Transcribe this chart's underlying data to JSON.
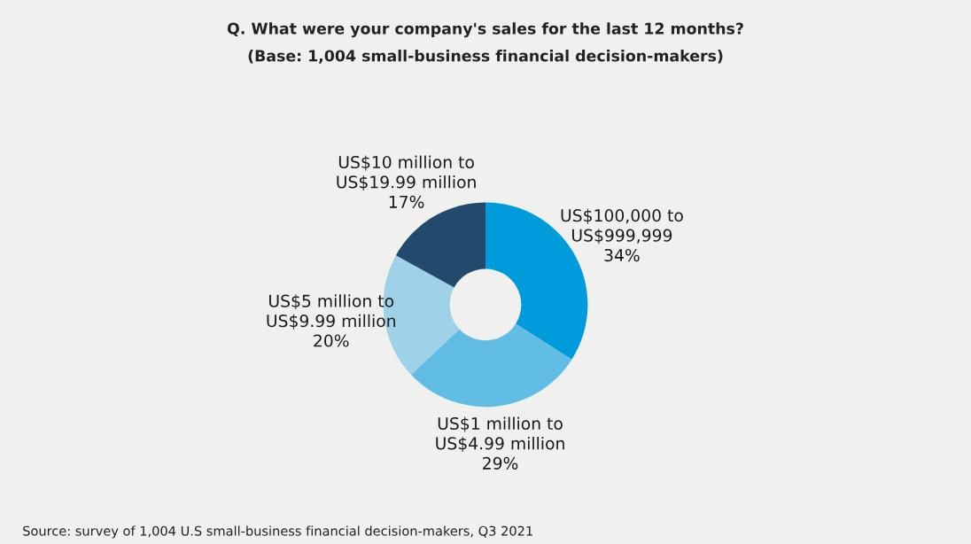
{
  "chart_data": {
    "type": "donut",
    "title": "Q. What were your company's sales for the last 12 months?",
    "subtitle": "(Base: 1,004 small-business financial decision-makers)",
    "categories": [
      "US$100,000 to\nUS$999,999",
      "US$1 million to\nUS$4.99 million",
      "US$5 million to\nUS$9.99 million",
      "US$10 million to\nUS$19.99 million"
    ],
    "values": [
      34,
      29,
      20,
      17
    ],
    "colors": [
      "#009bdb",
      "#62bde4",
      "#9dd2e8",
      "#234a6c"
    ],
    "value_labels": [
      "34%",
      "29%",
      "20%",
      "17%"
    ],
    "legend": false,
    "annotations": [
      "Source: survey of 1,004 U.S small-business financial decision-makers, Q3 2021"
    ]
  }
}
